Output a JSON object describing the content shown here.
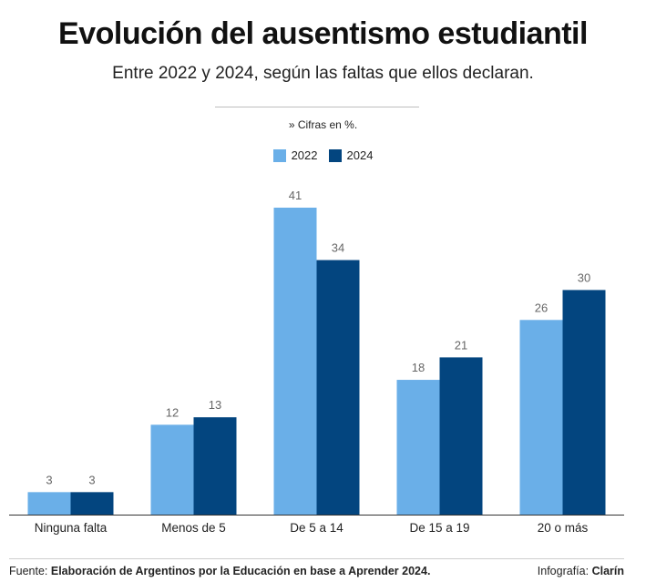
{
  "header": {
    "title": "Evolución del ausentismo estudiantil",
    "subtitle": "Entre 2022 y 2024, según las faltas que ellos declaran.",
    "note": "» Cifras en %."
  },
  "footer": {
    "source_label": "Fuente:",
    "source_text": "Elaboración de Argentinos por la Educación en base a Aprender 2024.",
    "credit_label": "Infografía:",
    "credit_text": "Clarín"
  },
  "colors": {
    "series_2022": "#6aafe8",
    "series_2024": "#03457f",
    "value_label": "#666666",
    "axis": "#333333"
  },
  "chart_data": {
    "type": "bar",
    "title": "Evolución del ausentismo estudiantil",
    "subtitle": "Entre 2022 y 2024, según las faltas que ellos declaran.",
    "categories": [
      "Ninguna falta",
      "Menos de 5",
      "De 5 a 14",
      "De 15 a 19",
      "20 o más"
    ],
    "series": [
      {
        "name": "2022",
        "values": [
          3,
          12,
          41,
          18,
          26
        ]
      },
      {
        "name": "2024",
        "values": [
          3,
          13,
          34,
          21,
          30
        ]
      }
    ],
    "ylim": [
      0,
      41
    ],
    "grid": false,
    "legend": "top-center",
    "data_labels": true
  }
}
